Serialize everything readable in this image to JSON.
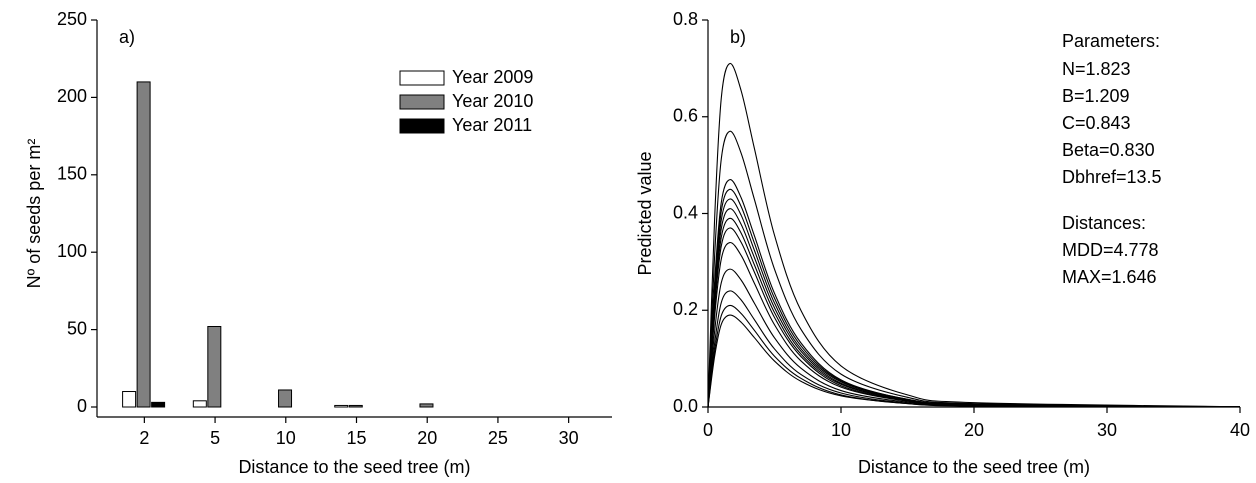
{
  "chart_data": [
    {
      "type": "bar",
      "annotation": "a)",
      "x_label": "Distance to the seed tree (m)",
      "y_label": "Nº of seeds per m²",
      "categories": [
        "2",
        "5",
        "10",
        "15",
        "20",
        "25",
        "30"
      ],
      "series": [
        {
          "name": "Year 2009",
          "color": "#ffffff",
          "values": [
            10,
            4,
            0,
            1,
            0,
            0,
            0
          ]
        },
        {
          "name": "Year 2010",
          "color": "#808080",
          "values": [
            210,
            52,
            11,
            1,
            2,
            0,
            0
          ]
        },
        {
          "name": "Year 2011",
          "color": "#000000",
          "values": [
            3,
            0,
            0,
            0,
            0,
            0,
            0
          ]
        }
      ],
      "ylim": [
        0,
        250
      ],
      "yticks": [
        0,
        50,
        100,
        150,
        200,
        250
      ],
      "legend": "upper right"
    },
    {
      "type": "line",
      "annotation": "b)",
      "x_label": "Distance to the seed tree (m)",
      "y_label": "Predicted value",
      "texts": [
        "Parameters:",
        "N=1.823",
        "B=1.209",
        "C=0.843",
        "Beta=0.830",
        "Dbhref=13.5",
        "Distances:",
        "MDD=4.778",
        "MAX=1.646"
      ],
      "x": [
        0,
        0.5,
        1,
        1.646,
        2.5,
        3.5,
        5,
        7,
        10,
        15,
        20,
        40
      ],
      "series": [
        {
          "color": "#000000",
          "values": [
            0,
            0.391,
            0.639,
            0.71,
            0.653,
            0.533,
            0.355,
            0.199,
            0.085,
            0.025,
            0.009,
            0.0004
          ]
        },
        {
          "color": "#000000",
          "values": [
            0,
            0.314,
            0.513,
            0.57,
            0.524,
            0.428,
            0.285,
            0.16,
            0.068,
            0.02,
            0.007,
            0.0003
          ]
        },
        {
          "color": "#000000",
          "values": [
            0,
            0.259,
            0.423,
            0.47,
            0.432,
            0.353,
            0.235,
            0.132,
            0.056,
            0.016,
            0.006,
            0.0002
          ]
        },
        {
          "color": "#000000",
          "values": [
            0,
            0.248,
            0.405,
            0.45,
            0.414,
            0.338,
            0.225,
            0.126,
            0.054,
            0.016,
            0.005,
            0.0002
          ]
        },
        {
          "color": "#000000",
          "values": [
            0,
            0.237,
            0.387,
            0.43,
            0.396,
            0.323,
            0.215,
            0.12,
            0.052,
            0.015,
            0.005,
            0.0002
          ]
        },
        {
          "color": "#000000",
          "values": [
            0,
            0.226,
            0.369,
            0.41,
            0.377,
            0.308,
            0.205,
            0.115,
            0.049,
            0.014,
            0.005,
            0.0002
          ]
        },
        {
          "color": "#000000",
          "values": [
            0,
            0.215,
            0.351,
            0.39,
            0.359,
            0.293,
            0.195,
            0.109,
            0.047,
            0.014,
            0.005,
            0.0002
          ]
        },
        {
          "color": "#000000",
          "values": [
            0,
            0.204,
            0.333,
            0.37,
            0.34,
            0.278,
            0.185,
            0.104,
            0.044,
            0.013,
            0.004,
            0.0002
          ]
        },
        {
          "color": "#000000",
          "values": [
            0,
            0.187,
            0.306,
            0.34,
            0.313,
            0.255,
            0.17,
            0.095,
            0.041,
            0.012,
            0.004,
            0.0002
          ]
        },
        {
          "color": "#000000",
          "values": [
            0,
            0.157,
            0.257,
            0.285,
            0.262,
            0.214,
            0.143,
            0.08,
            0.034,
            0.01,
            0.003,
            0.0001
          ]
        },
        {
          "color": "#000000",
          "values": [
            0,
            0.132,
            0.216,
            0.24,
            0.221,
            0.18,
            0.12,
            0.067,
            0.029,
            0.008,
            0.003,
            0.0001
          ]
        },
        {
          "color": "#000000",
          "values": [
            0,
            0.116,
            0.189,
            0.21,
            0.193,
            0.158,
            0.105,
            0.059,
            0.025,
            0.007,
            0.003,
            0.0001
          ]
        },
        {
          "color": "#000000",
          "values": [
            0,
            0.105,
            0.171,
            0.19,
            0.175,
            0.143,
            0.095,
            0.053,
            0.023,
            0.007,
            0.002,
            0.0001
          ]
        }
      ],
      "xlim": [
        0,
        40
      ],
      "xticks": [
        0,
        10,
        20,
        30,
        40
      ],
      "ylim": [
        0,
        0.8
      ],
      "yticks": [
        {
          "value": 0,
          "label": "0.0"
        },
        0.2,
        0.4,
        0.6,
        0.8
      ]
    }
  ]
}
